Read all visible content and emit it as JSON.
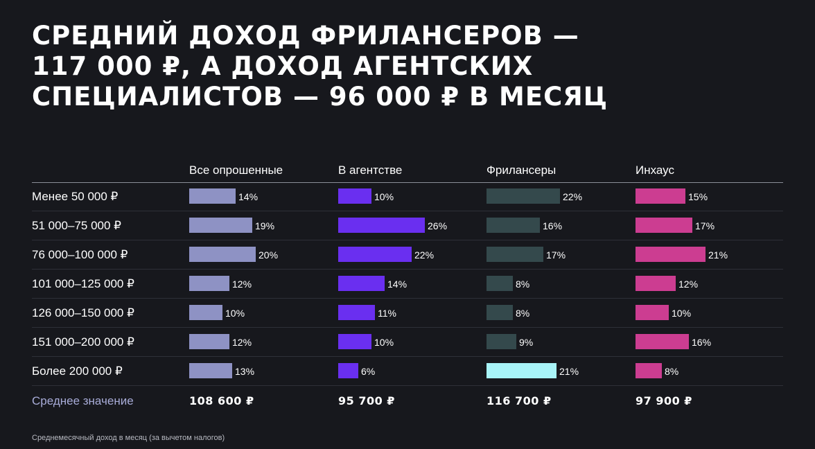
{
  "title_lines": [
    "СРЕДНИЙ ДОХОД ФРИЛАНСЕРОВ —",
    "117 000 ₽, А ДОХОД АГЕНТСКИХ",
    "СПЕЦИАЛИСТОВ — 96 000 ₽ В МЕСЯЦ"
  ],
  "chart_data": {
    "type": "bar",
    "orientation": "horizontal",
    "categories": [
      "Менее 50 000 ₽",
      "51 000–75 000 ₽",
      "76 000–100 000 ₽",
      "101 000–125 000 ₽",
      "126 000–150 000 ₽",
      "151 000–200 000 ₽",
      "Более 200 000 ₽"
    ],
    "series": [
      {
        "name": "Все опрошенные",
        "values": [
          14,
          19,
          20,
          12,
          10,
          12,
          13
        ],
        "color": "#8e92c4",
        "average": "108 600 ₽"
      },
      {
        "name": "В агентстве",
        "values": [
          10,
          26,
          22,
          14,
          11,
          10,
          6
        ],
        "color": "#6a2ff0",
        "average": "95 700 ₽"
      },
      {
        "name": "Фрилансеры",
        "values": [
          22,
          16,
          17,
          8,
          8,
          9,
          21
        ],
        "color": "#34494c",
        "highlight_color": "#a8f4f8",
        "highlight_index": 6,
        "average": "116 700 ₽"
      },
      {
        "name": "Инхаус",
        "values": [
          15,
          17,
          21,
          12,
          10,
          16,
          8
        ],
        "color": "#cc3d91",
        "average": "97 900 ₽"
      }
    ],
    "value_suffix": "%",
    "average_label": "Среднее значение"
  },
  "footnote": "Среднемесячный доход в месяц (за вычетом налогов)"
}
